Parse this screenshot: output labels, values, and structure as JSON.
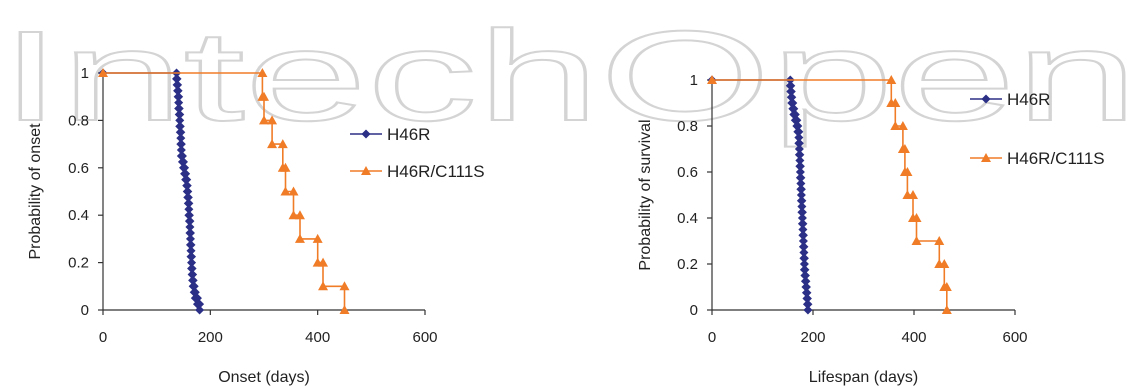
{
  "watermark": "IntechOpen",
  "chart_data": [
    {
      "type": "line",
      "step": true,
      "xlabel": "Onset  (days)",
      "ylabel": "Probability  of onset",
      "xlim": [
        0,
        600
      ],
      "ylim": [
        0,
        1
      ],
      "xticks": [
        0,
        200,
        400,
        600
      ],
      "yticks": [
        0,
        0.2,
        0.4,
        0.6,
        0.8,
        1
      ],
      "grid": false,
      "legend_position": "right",
      "series": [
        {
          "name": "H46R",
          "color": "#2b2f86",
          "marker": "diamond",
          "points": [
            [
              0,
              1
            ],
            [
              137,
              1
            ],
            [
              137,
              0.975
            ],
            [
              138,
              0.975
            ],
            [
              138,
              0.95
            ],
            [
              139,
              0.95
            ],
            [
              139,
              0.925
            ],
            [
              140,
              0.925
            ],
            [
              140,
              0.9
            ],
            [
              141,
              0.9
            ],
            [
              141,
              0.875
            ],
            [
              141,
              0.85
            ],
            [
              142,
              0.85
            ],
            [
              142,
              0.825
            ],
            [
              143,
              0.825
            ],
            [
              143,
              0.8
            ],
            [
              143,
              0.775
            ],
            [
              144,
              0.775
            ],
            [
              144,
              0.75
            ],
            [
              145,
              0.75
            ],
            [
              145,
              0.725
            ],
            [
              145,
              0.7
            ],
            [
              146,
              0.7
            ],
            [
              146,
              0.675
            ],
            [
              146,
              0.65
            ],
            [
              148,
              0.65
            ],
            [
              148,
              0.625
            ],
            [
              150,
              0.625
            ],
            [
              150,
              0.6
            ],
            [
              152,
              0.6
            ],
            [
              152,
              0.575
            ],
            [
              154,
              0.575
            ],
            [
              154,
              0.55
            ],
            [
              156,
              0.55
            ],
            [
              156,
              0.525
            ],
            [
              157,
              0.525
            ],
            [
              157,
              0.5
            ],
            [
              158,
              0.5
            ],
            [
              158,
              0.475
            ],
            [
              159,
              0.475
            ],
            [
              159,
              0.45
            ],
            [
              160,
              0.45
            ],
            [
              160,
              0.425
            ],
            [
              160,
              0.4
            ],
            [
              161,
              0.4
            ],
            [
              161,
              0.375
            ],
            [
              162,
              0.375
            ],
            [
              162,
              0.35
            ],
            [
              162,
              0.325
            ],
            [
              163,
              0.325
            ],
            [
              163,
              0.3
            ],
            [
              163,
              0.275
            ],
            [
              164,
              0.275
            ],
            [
              164,
              0.25
            ],
            [
              164,
              0.225
            ],
            [
              165,
              0.225
            ],
            [
              165,
              0.2
            ],
            [
              165,
              0.175
            ],
            [
              166,
              0.175
            ],
            [
              166,
              0.15
            ],
            [
              167,
              0.15
            ],
            [
              167,
              0.125
            ],
            [
              168,
              0.125
            ],
            [
              168,
              0.1
            ],
            [
              170,
              0.1
            ],
            [
              170,
              0.075
            ],
            [
              172,
              0.075
            ],
            [
              172,
              0.05
            ],
            [
              176,
              0.05
            ],
            [
              176,
              0.025
            ],
            [
              180,
              0.025
            ],
            [
              180,
              0
            ]
          ]
        },
        {
          "name": "H46R/C111S",
          "color": "#f07c28",
          "marker": "triangle",
          "points": [
            [
              0,
              1
            ],
            [
              297,
              1
            ],
            [
              297,
              0.9
            ],
            [
              300,
              0.9
            ],
            [
              300,
              0.8
            ],
            [
              315,
              0.8
            ],
            [
              315,
              0.7
            ],
            [
              335,
              0.7
            ],
            [
              335,
              0.6
            ],
            [
              340,
              0.6
            ],
            [
              340,
              0.5
            ],
            [
              355,
              0.5
            ],
            [
              355,
              0.4
            ],
            [
              367,
              0.4
            ],
            [
              367,
              0.3
            ],
            [
              400,
              0.3
            ],
            [
              400,
              0.2
            ],
            [
              410,
              0.2
            ],
            [
              410,
              0.1
            ],
            [
              450,
              0.1
            ],
            [
              450,
              0
            ]
          ]
        }
      ]
    },
    {
      "type": "line",
      "step": true,
      "xlabel": "Lifespan  (days)",
      "ylabel": "Probability  of survival",
      "xlim": [
        0,
        600
      ],
      "ylim": [
        0,
        1
      ],
      "xticks": [
        0,
        200,
        400,
        600
      ],
      "yticks": [
        0,
        0.2,
        0.4,
        0.6,
        0.8,
        1
      ],
      "grid": false,
      "legend_position": "right",
      "series": [
        {
          "name": "H46R",
          "color": "#2b2f86",
          "marker": "diamond",
          "points": [
            [
              0,
              1
            ],
            [
              155,
              1
            ],
            [
              155,
              0.975
            ],
            [
              156,
              0.975
            ],
            [
              156,
              0.95
            ],
            [
              157,
              0.95
            ],
            [
              157,
              0.925
            ],
            [
              158,
              0.925
            ],
            [
              158,
              0.9
            ],
            [
              160,
              0.9
            ],
            [
              160,
              0.875
            ],
            [
              162,
              0.875
            ],
            [
              162,
              0.85
            ],
            [
              165,
              0.85
            ],
            [
              165,
              0.825
            ],
            [
              168,
              0.825
            ],
            [
              168,
              0.8
            ],
            [
              170,
              0.8
            ],
            [
              170,
              0.775
            ],
            [
              172,
              0.775
            ],
            [
              172,
              0.75
            ],
            [
              172,
              0.725
            ],
            [
              173,
              0.725
            ],
            [
              173,
              0.7
            ],
            [
              173,
              0.675
            ],
            [
              174,
              0.675
            ],
            [
              174,
              0.65
            ],
            [
              174,
              0.625
            ],
            [
              175,
              0.625
            ],
            [
              175,
              0.6
            ],
            [
              175,
              0.575
            ],
            [
              176,
              0.575
            ],
            [
              176,
              0.55
            ],
            [
              176,
              0.525
            ],
            [
              177,
              0.525
            ],
            [
              177,
              0.5
            ],
            [
              177,
              0.475
            ],
            [
              178,
              0.475
            ],
            [
              178,
              0.45
            ],
            [
              178,
              0.425
            ],
            [
              179,
              0.425
            ],
            [
              179,
              0.4
            ],
            [
              179,
              0.375
            ],
            [
              180,
              0.375
            ],
            [
              180,
              0.35
            ],
            [
              180,
              0.325
            ],
            [
              181,
              0.325
            ],
            [
              181,
              0.3
            ],
            [
              181,
              0.275
            ],
            [
              182,
              0.275
            ],
            [
              182,
              0.25
            ],
            [
              182,
              0.225
            ],
            [
              183,
              0.225
            ],
            [
              183,
              0.2
            ],
            [
              183,
              0.175
            ],
            [
              184,
              0.175
            ],
            [
              184,
              0.15
            ],
            [
              185,
              0.15
            ],
            [
              185,
              0.125
            ],
            [
              186,
              0.125
            ],
            [
              186,
              0.1
            ],
            [
              187,
              0.1
            ],
            [
              187,
              0.075
            ],
            [
              188,
              0.075
            ],
            [
              188,
              0.05
            ],
            [
              189,
              0.05
            ],
            [
              189,
              0.025
            ],
            [
              190,
              0.025
            ],
            [
              190,
              0
            ]
          ]
        },
        {
          "name": "H46R/C111S",
          "color": "#f07c28",
          "marker": "triangle",
          "points": [
            [
              0,
              1
            ],
            [
              355,
              1
            ],
            [
              355,
              0.9
            ],
            [
              363,
              0.9
            ],
            [
              363,
              0.8
            ],
            [
              378,
              0.8
            ],
            [
              378,
              0.7
            ],
            [
              382,
              0.7
            ],
            [
              382,
              0.6
            ],
            [
              387,
              0.6
            ],
            [
              387,
              0.5
            ],
            [
              398,
              0.5
            ],
            [
              398,
              0.4
            ],
            [
              405,
              0.4
            ],
            [
              405,
              0.3
            ],
            [
              450,
              0.3
            ],
            [
              450,
              0.2
            ],
            [
              460,
              0.2
            ],
            [
              460,
              0.1
            ],
            [
              465,
              0.1
            ],
            [
              465,
              0
            ]
          ]
        }
      ]
    }
  ]
}
